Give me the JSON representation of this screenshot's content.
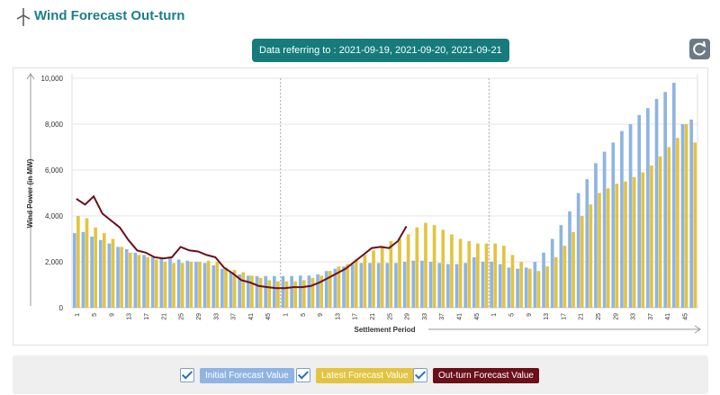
{
  "badge": "Data referring to : 2021-09-19, 2021-09-20, 2021-09-21",
  "chart_data": {
    "type": "bar",
    "title": "Wind Forecast Out-turn",
    "y_label": "Wind Power (in MW)",
    "x_label": "Settlement Period",
    "categories": [
      "1",
      null,
      "5",
      null,
      "9",
      null,
      "13",
      null,
      "17",
      null,
      "21",
      null,
      "25",
      null,
      "29",
      null,
      "33",
      null,
      "37",
      null,
      "41",
      null,
      "45",
      null,
      "1",
      null,
      "5",
      null,
      "9",
      null,
      "13",
      null,
      "17",
      null,
      "21",
      null,
      "25",
      null,
      "29",
      null,
      "33",
      null,
      "37",
      null,
      "41",
      null,
      "45",
      null,
      "1",
      null,
      "5",
      null,
      "9",
      null,
      "13",
      null,
      "17",
      null,
      "21",
      null,
      "25",
      null,
      "29",
      null,
      "33",
      null,
      "37",
      null,
      "41",
      null,
      "45",
      null
    ],
    "series": [
      {
        "name": "Initial Forecast Value",
        "color": "#8eb4e3",
        "values": [
          3250,
          3300,
          3100,
          2950,
          2800,
          2650,
          2550,
          2400,
          2300,
          2200,
          2200,
          2150,
          2100,
          2050,
          2000,
          1950,
          1850,
          1700,
          1550,
          1450,
          1400,
          1380,
          1380,
          1380,
          1380,
          1380,
          1400,
          1400,
          1450,
          1600,
          1700,
          1800,
          1900,
          1950,
          1950,
          1950,
          1950,
          1950,
          2000,
          2050,
          2050,
          2000,
          1950,
          1900,
          1900,
          1950,
          2200,
          2000,
          2000,
          1900,
          1750,
          1700,
          1750,
          2000,
          2400,
          3000,
          3600,
          4200,
          5000,
          5600,
          6300,
          6800,
          7200,
          7700,
          8000,
          8400,
          8700,
          9100,
          9400,
          9800,
          8000,
          8200
        ]
      },
      {
        "name": "Latest Forecast Value",
        "color": "#e2c440",
        "values": [
          4000,
          3900,
          3500,
          3250,
          3000,
          2650,
          2400,
          2300,
          2200,
          2100,
          2000,
          1950,
          1950,
          2000,
          2000,
          2050,
          2000,
          1750,
          1650,
          1550,
          1400,
          1300,
          1200,
          1150,
          1150,
          1150,
          1200,
          1300,
          1400,
          1600,
          1800,
          1900,
          2100,
          2300,
          2500,
          2700,
          2900,
          3000,
          3200,
          3500,
          3700,
          3600,
          3400,
          3200,
          3000,
          2900,
          2800,
          2800,
          2800,
          2700,
          2300,
          2000,
          1700,
          1600,
          1800,
          2200,
          2700,
          3300,
          4000,
          4500,
          5000,
          5200,
          5400,
          5500,
          5700,
          5900,
          6200,
          6600,
          7000,
          7400,
          8000,
          7200
        ]
      },
      {
        "name": "Out-turn Forecast Value",
        "color": "#6b0f1a",
        "line": true,
        "values": [
          4750,
          4500,
          4850,
          4100,
          3800,
          3500,
          2950,
          2500,
          2400,
          2200,
          2150,
          2200,
          2650,
          2500,
          2450,
          2300,
          2200,
          1750,
          1500,
          1200,
          1100,
          950,
          900,
          850,
          850,
          900,
          900,
          950,
          1100,
          1300,
          1500,
          1700,
          2000,
          2300,
          2600,
          2650,
          2600,
          2900,
          3550,
          null,
          null,
          null,
          null,
          null,
          null,
          null,
          null,
          null,
          null,
          null,
          null,
          null,
          null,
          null,
          null,
          null,
          null,
          null,
          null,
          null,
          null,
          null,
          null,
          null,
          null,
          null,
          null,
          null,
          null,
          null,
          null,
          null
        ]
      }
    ],
    "ylim": [
      0,
      10000
    ],
    "yticks": [
      0,
      {
        "value": 2000,
        "label": "2,000"
      },
      {
        "value": 4000,
        "label": "4,000"
      },
      {
        "value": 6000,
        "label": "6,000"
      },
      {
        "value": 8000,
        "label": "8,000"
      },
      {
        "value": 10000,
        "label": "10,000"
      }
    ],
    "grid": true
  }
}
